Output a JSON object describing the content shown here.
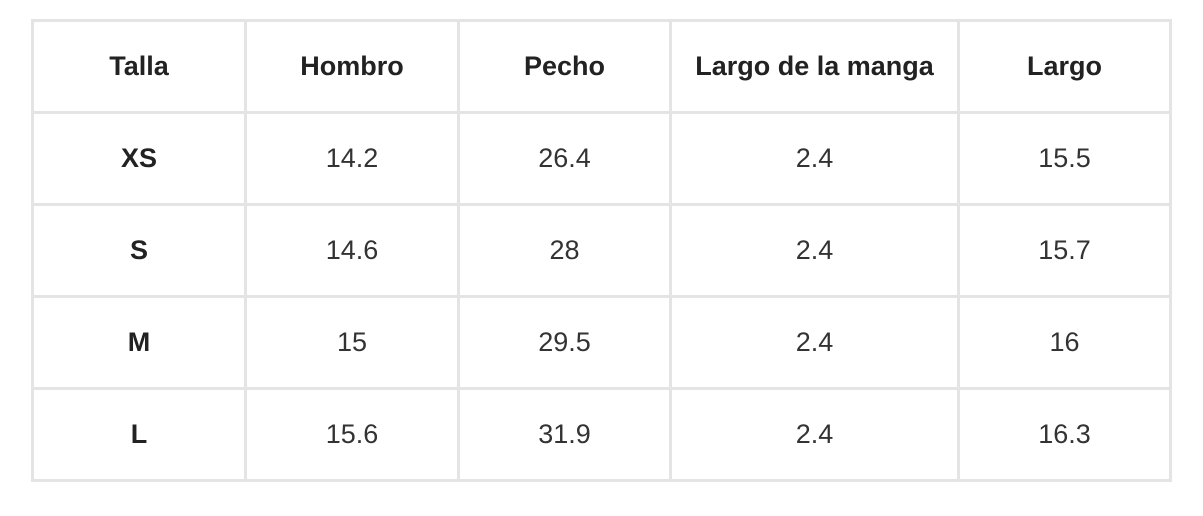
{
  "size_table": {
    "headers": [
      "Talla",
      "Hombro",
      "Pecho",
      "Largo de la manga",
      "Largo"
    ],
    "rows": [
      {
        "size": "XS",
        "values": [
          "14.2",
          "26.4",
          "2.4",
          "15.5"
        ]
      },
      {
        "size": "S",
        "values": [
          "14.6",
          "28",
          "2.4",
          "15.7"
        ]
      },
      {
        "size": "M",
        "values": [
          "15",
          "29.5",
          "2.4",
          "16"
        ]
      },
      {
        "size": "L",
        "values": [
          "15.6",
          "31.9",
          "2.4",
          "16.3"
        ]
      }
    ]
  }
}
